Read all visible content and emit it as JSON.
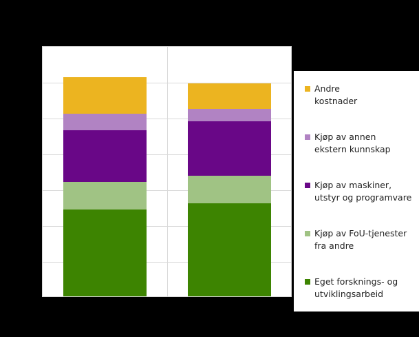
{
  "chart_data": {
    "type": "bar",
    "stacked": true,
    "title": "",
    "xlabel": "",
    "ylabel": "",
    "ylim": [
      0,
      7
    ],
    "y_ticks_note": "Tick labels not visible (rendered black on black); values expressed in gridline units",
    "gridlines": {
      "horizontal": true,
      "vertical": true,
      "count": 7
    },
    "legend_position": "right",
    "categories": [
      "",
      ""
    ],
    "series": [
      {
        "name": "Eget forsknings- og utviklingsarbeid",
        "color": "#3D8401",
        "values": [
          2.42,
          2.6
        ]
      },
      {
        "name": "Kjøp av FoU-tjenester fra andre",
        "color": "#A0C384",
        "values": [
          0.77,
          0.77
        ]
      },
      {
        "name": "Kjøp av maskiner, utstyr og programvare",
        "color": "#690787",
        "values": [
          1.44,
          1.52
        ]
      },
      {
        "name": "Kjøp av annen ekstern kunnskap",
        "color": "#B183C3",
        "values": [
          0.46,
          0.35
        ]
      },
      {
        "name": "Andre kostnader",
        "color": "#ECB420",
        "values": [
          1.02,
          0.71
        ]
      }
    ],
    "totals": [
      6.12,
      5.94
    ]
  },
  "legend": {
    "items": [
      {
        "label": "Andre\nkostnader",
        "color": "#ECB420"
      },
      {
        "label": "Kjøp av annen\nekstern kunnskap",
        "color": "#B183C3"
      },
      {
        "label": "Kjøp av maskiner,\nutstyr og programvare",
        "color": "#690787"
      },
      {
        "label": "Kjøp av FoU-tjenester\nfra andre",
        "color": "#A0C384"
      },
      {
        "label": "Eget forsknings- og\nutviklingsarbeid",
        "color": "#3D8401"
      }
    ]
  },
  "colors": {
    "background": "#000000",
    "plot_background": "#FFFFFF",
    "gridline": "#D9D9D9"
  }
}
